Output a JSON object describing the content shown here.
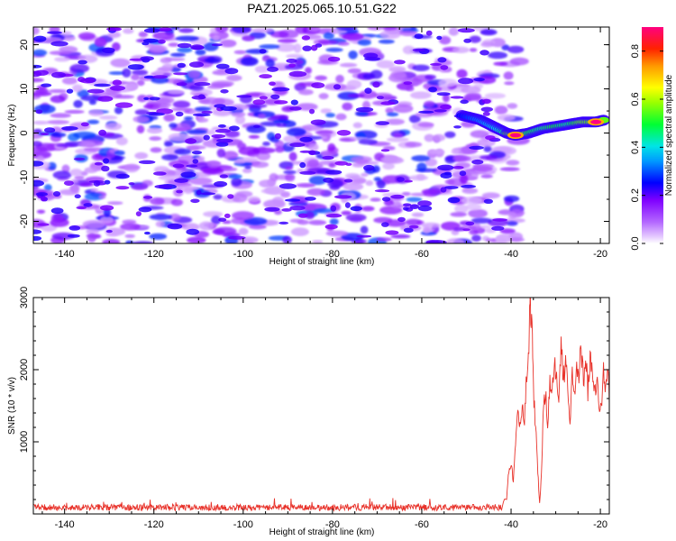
{
  "title": "PAZ1.2025.065.10.51.G22",
  "chart_data": [
    {
      "type": "heatmap",
      "xlabel": "Height of straight line (km)",
      "ylabel": "Frequency (Hz)",
      "xlim": [
        -147,
        -18
      ],
      "ylim": [
        -25,
        24
      ],
      "xticks": [
        "-140",
        "-120",
        "-100",
        "-80",
        "-60",
        "-40",
        "-20"
      ],
      "yticks": [
        "-20",
        "-10",
        "0",
        "10",
        "20"
      ],
      "noise_region": {
        "x": [
          -147,
          -42
        ],
        "y": [
          -25,
          24
        ],
        "amplitude_range": [
          0.05,
          0.3
        ]
      },
      "signal_ridge": [
        {
          "x": -51,
          "y": 4.0,
          "amp": 0.25
        },
        {
          "x": -47,
          "y": 3.0,
          "amp": 0.32
        },
        {
          "x": -44,
          "y": 1.5,
          "amp": 0.38
        },
        {
          "x": -41,
          "y": 0.0,
          "amp": 0.45
        },
        {
          "x": -39,
          "y": -0.5,
          "amp": 0.95
        },
        {
          "x": -36,
          "y": 0.0,
          "amp": 0.5
        },
        {
          "x": -33,
          "y": 1.0,
          "amp": 0.45
        },
        {
          "x": -30,
          "y": 1.5,
          "amp": 0.5
        },
        {
          "x": -27,
          "y": 2.0,
          "amp": 0.45
        },
        {
          "x": -24,
          "y": 2.5,
          "amp": 0.55
        },
        {
          "x": -21,
          "y": 2.5,
          "amp": 0.95
        },
        {
          "x": -19,
          "y": 3.0,
          "amp": 0.6
        }
      ],
      "colorbar": {
        "label": "Normalized spectral amplitude",
        "range": [
          0,
          0.9
        ],
        "ticks": [
          "0.0",
          "0.2",
          "0.4",
          "0.6",
          "0.8"
        ]
      }
    },
    {
      "type": "line",
      "xlabel": "Height of straight line (km)",
      "ylabel": "SNR (10 * v/v)",
      "xlim": [
        -147,
        -18
      ],
      "ylim": [
        0,
        3000
      ],
      "xticks": [
        "-140",
        "-120",
        "-100",
        "-80",
        "-60",
        "-40",
        "-20"
      ],
      "yticks": [
        "1000",
        "2000",
        "3000"
      ],
      "series": [
        {
          "color": "#e8322a",
          "baseline_level": 100,
          "baseline_x": [
            -147,
            -42
          ],
          "points": [
            [
              -42,
              120
            ],
            [
              -41,
              220
            ],
            [
              -40.5,
              600
            ],
            [
              -40,
              700
            ],
            [
              -39.5,
              450
            ],
            [
              -39,
              1000
            ],
            [
              -38.5,
              1400
            ],
            [
              -38,
              1250
            ],
            [
              -37.5,
              1500
            ],
            [
              -37,
              1300
            ],
            [
              -36.5,
              1900
            ],
            [
              -36,
              2400
            ],
            [
              -35.7,
              3000
            ],
            [
              -35.3,
              2500
            ],
            [
              -35,
              1700
            ],
            [
              -34.5,
              1200
            ],
            [
              -34,
              600
            ],
            [
              -33.6,
              120
            ],
            [
              -33.2,
              600
            ],
            [
              -32.8,
              1400
            ],
            [
              -32.3,
              1700
            ],
            [
              -31.8,
              1200
            ],
            [
              -31.3,
              1800
            ],
            [
              -30.8,
              1600
            ],
            [
              -30.3,
              2200
            ],
            [
              -29.8,
              1900
            ],
            [
              -29.3,
              1500
            ],
            [
              -28.8,
              2450
            ],
            [
              -28.3,
              1800
            ],
            [
              -27.8,
              2200
            ],
            [
              -27.3,
              1700
            ],
            [
              -26.8,
              1300
            ],
            [
              -26.3,
              2000
            ],
            [
              -25.8,
              1600
            ],
            [
              -25.3,
              2100
            ],
            [
              -24.8,
              1900
            ],
            [
              -24.3,
              2350
            ],
            [
              -23.8,
              1800
            ],
            [
              -23.3,
              2300
            ],
            [
              -22.8,
              1700
            ],
            [
              -22.3,
              2100
            ],
            [
              -21.8,
              2000
            ],
            [
              -21.3,
              1700
            ],
            [
              -20.8,
              1900
            ],
            [
              -20.3,
              1400
            ],
            [
              -19.8,
              1500
            ],
            [
              -19.3,
              2000
            ],
            [
              -18.8,
              1800
            ],
            [
              -18.3,
              2100
            ],
            [
              -18,
              1500
            ]
          ]
        }
      ]
    }
  ]
}
